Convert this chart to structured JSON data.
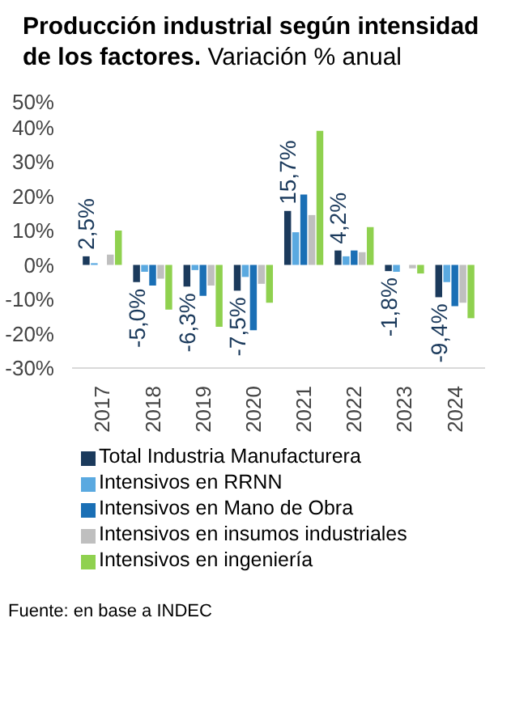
{
  "chart_data": {
    "type": "bar",
    "title": "Producción industrial según intensidad de los factores.",
    "subtitle": "Variación % anual",
    "categories": [
      "2017",
      "2018",
      "2019",
      "2020",
      "2021",
      "2022",
      "2023",
      "2024"
    ],
    "series": [
      {
        "name": "Total Industria Manufacturera",
        "color": "#1b3a5c",
        "values": [
          2.5,
          -5.0,
          -6.3,
          -7.5,
          15.7,
          4.2,
          -1.8,
          -9.4
        ],
        "value_labels": [
          "2,5%",
          "-5,0%",
          "-6,3%",
          "-7,5%",
          "15,7%",
          "4,2%",
          "-1,8%",
          "-9,4%"
        ]
      },
      {
        "name": "Intensivos en RRNN",
        "color": "#5aa9e0",
        "values": [
          0.5,
          -2,
          -1.5,
          -3.5,
          9.5,
          2.5,
          -2,
          -5
        ]
      },
      {
        "name": "Intensivos en Mano de Obra",
        "color": "#1a6fb5",
        "values": [
          0,
          -6,
          -9,
          -19,
          20.5,
          4.2,
          0,
          -12
        ]
      },
      {
        "name": "Intensivos en insumos industriales",
        "color": "#bfbfbf",
        "values": [
          3,
          -4,
          -6,
          -5.5,
          14.5,
          3.7,
          -1,
          -11
        ]
      },
      {
        "name": "Intensivos en ingeniería",
        "color": "#8fd14f",
        "values": [
          10,
          -13,
          -18,
          -11,
          39,
          11,
          -2.5,
          -15.5
        ]
      }
    ],
    "ylim": [
      -30,
      50
    ],
    "yticks": [
      {
        "value": -30,
        "label": "-30%"
      },
      {
        "value": -20,
        "label": "-20%"
      },
      {
        "value": -10,
        "label": "-10%"
      },
      {
        "value": 0,
        "label": "0%"
      },
      {
        "value": 10,
        "label": "10%"
      },
      {
        "value": 20,
        "label": "20%"
      },
      {
        "value": 30,
        "label": "30%"
      },
      {
        "value": 40,
        "label": "40%"
      },
      {
        "value": 50,
        "label": "50%"
      }
    ],
    "grid": false,
    "legend": "bottom",
    "annotations": [
      "Fuente: en base a INDEC"
    ]
  }
}
